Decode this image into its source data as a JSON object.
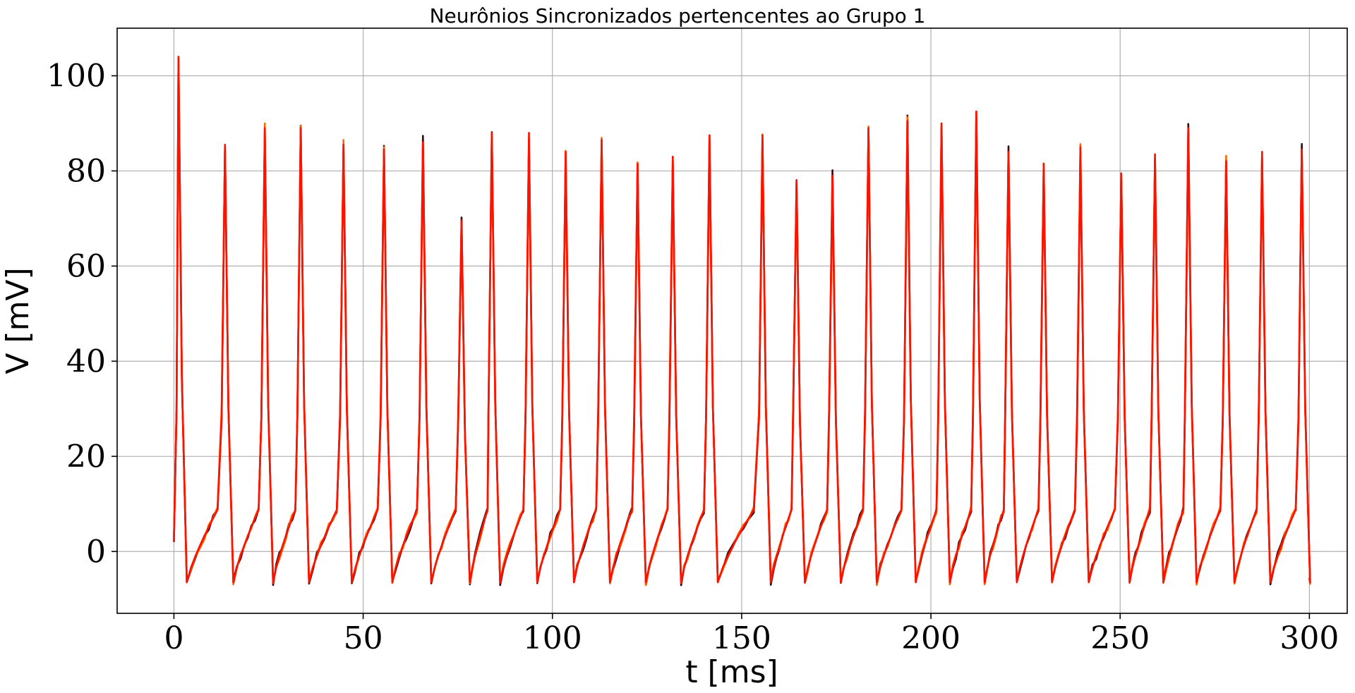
{
  "chart_data": {
    "type": "line",
    "title": "Neurônios Sincronizados pertencentes ao Grupo 1",
    "xlabel": "t [ms]",
    "ylabel": "V [mV]",
    "xlim": [
      -15,
      310
    ],
    "ylim": [
      -13,
      110
    ],
    "xticks": [
      0,
      50,
      100,
      150,
      200,
      250,
      300
    ],
    "yticks": [
      0,
      20,
      40,
      60,
      80,
      100
    ],
    "grid": true,
    "legend": "none",
    "colors": {
      "main": "#ff1100",
      "shadow": "#3a0a0a",
      "alt": "#ff6600"
    },
    "start": {
      "t": 0,
      "v": 2
    },
    "spikes": [
      {
        "t": 1.2,
        "peak": 104
      },
      {
        "t": 13.5,
        "peak": 85.5
      },
      {
        "t": 24,
        "peak": 89
      },
      {
        "t": 33.5,
        "peak": 89
      },
      {
        "t": 44.8,
        "peak": 85.5
      },
      {
        "t": 55.5,
        "peak": 84.5
      },
      {
        "t": 65.8,
        "peak": 86
      },
      {
        "t": 76,
        "peak": 69.5
      },
      {
        "t": 84,
        "peak": 88
      },
      {
        "t": 93.8,
        "peak": 88
      },
      {
        "t": 103.5,
        "peak": 84
      },
      {
        "t": 113,
        "peak": 86.5
      },
      {
        "t": 122.5,
        "peak": 81.5
      },
      {
        "t": 131.8,
        "peak": 83
      },
      {
        "t": 141.5,
        "peak": 87.5
      },
      {
        "t": 155.5,
        "peak": 87.5
      },
      {
        "t": 164.5,
        "peak": 78
      },
      {
        "t": 174,
        "peak": 79
      },
      {
        "t": 183.5,
        "peak": 89
      },
      {
        "t": 193.8,
        "peak": 90.5
      },
      {
        "t": 202.8,
        "peak": 90
      },
      {
        "t": 212,
        "peak": 92.5
      },
      {
        "t": 220.5,
        "peak": 84
      },
      {
        "t": 229.8,
        "peak": 81.5
      },
      {
        "t": 239.5,
        "peak": 85
      },
      {
        "t": 250.3,
        "peak": 79.5
      },
      {
        "t": 259.2,
        "peak": 83.5
      },
      {
        "t": 268,
        "peak": 89
      },
      {
        "t": 278,
        "peak": 82
      },
      {
        "t": 287.5,
        "peak": 84
      },
      {
        "t": 298,
        "peak": 84.5
      }
    ],
    "end": {
      "t": 300,
      "v": -5.5
    }
  }
}
